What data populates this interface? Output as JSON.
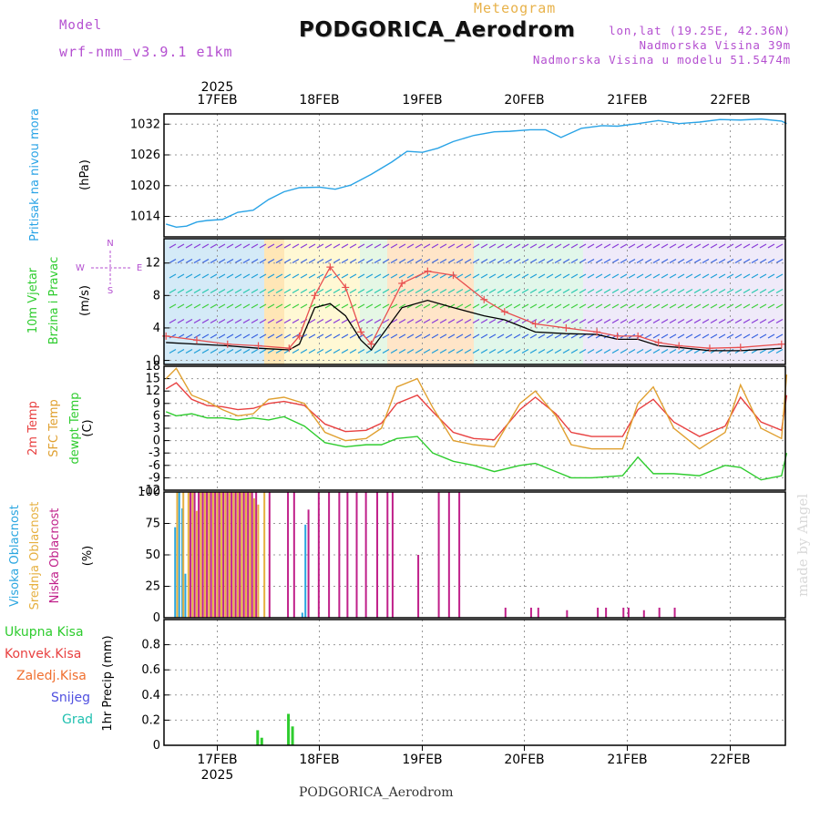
{
  "header": {
    "model_label": "Model",
    "model_name": "wrf-nmm_v3.9.1  e1km",
    "meteogram_label": "Meteogram",
    "station": "PODGORICA_Aerodrom",
    "lonlat": "lon,lat (19.25E, 42.36N)",
    "elevation": "Nadmorska Visina 39m",
    "model_elevation": "Nadmorska Visina u modelu 51.5474m"
  },
  "footer": {
    "station": "PODGORICA_Aerodrom",
    "credit": "made by Angel"
  },
  "time_axis": {
    "year": "2025",
    "days": [
      "17FEB",
      "18FEB",
      "19FEB",
      "20FEB",
      "21FEB",
      "22FEB"
    ]
  },
  "chart_data": [
    {
      "type": "line",
      "panel": "pressure",
      "ylabel": [
        "Pritisak na nivou mora",
        "(hPa)"
      ],
      "ylim": [
        1010,
        1034
      ],
      "yticks": [
        1014,
        1020,
        1026,
        1032
      ],
      "grid": true,
      "series": [
        {
          "color": "#29a3e6",
          "x": [
            0,
            0.1,
            0.2,
            0.3,
            0.4,
            0.55,
            0.7,
            0.85,
            1.0,
            1.15,
            1.3,
            1.5,
            1.65,
            1.8,
            2.0,
            2.2,
            2.35,
            2.5,
            2.65,
            2.8,
            3.0,
            3.2,
            3.35,
            3.55,
            3.7,
            3.85,
            4.05,
            4.25,
            4.4,
            4.6,
            4.8,
            5.0,
            5.2,
            5.4,
            5.6,
            5.8,
            6.0,
            6.05
          ],
          "y": [
            1012.5,
            1011.9,
            1012.1,
            1012.9,
            1013.2,
            1013.4,
            1014.8,
            1015.2,
            1017.3,
            1018.8,
            1019.6,
            1019.7,
            1019.3,
            1020.1,
            1022.2,
            1024.6,
            1026.7,
            1026.5,
            1027.3,
            1028.6,
            1029.8,
            1030.5,
            1030.6,
            1030.9,
            1030.9,
            1029.4,
            1031.2,
            1031.7,
            1031.6,
            1032.1,
            1032.7,
            1032.1,
            1032.4,
            1032.9,
            1032.8,
            1033.0,
            1032.6,
            1032.1
          ]
        }
      ]
    },
    {
      "type": "line",
      "panel": "wind",
      "ylabel": [
        "10m Vjetar",
        "Brzina i Pravac",
        "(m/s)"
      ],
      "direction_legend": [
        "N",
        "E",
        "S",
        "W"
      ],
      "ylim": [
        -0.5,
        15
      ],
      "yticks": [
        0,
        4,
        8,
        12
      ],
      "grid": true,
      "series": [
        {
          "name": "speed",
          "color": "#000000",
          "x": [
            0,
            0.3,
            0.6,
            0.9,
            1.2,
            1.3,
            1.45,
            1.6,
            1.75,
            1.9,
            2.0,
            2.3,
            2.55,
            2.8,
            3.1,
            3.3,
            3.6,
            3.9,
            4.2,
            4.4,
            4.6,
            4.8,
            5.0,
            5.3,
            5.6,
            6.0
          ],
          "y": [
            2.2,
            2.0,
            1.8,
            1.5,
            1.3,
            2.0,
            6.5,
            7.0,
            5.5,
            2.5,
            1.3,
            6.5,
            7.4,
            6.5,
            5.5,
            5.0,
            3.5,
            3.3,
            3.2,
            2.6,
            2.6,
            1.8,
            1.6,
            1.2,
            1.2,
            1.5
          ]
        },
        {
          "name": "gust",
          "color": "#e85050",
          "x": [
            0,
            0.3,
            0.6,
            0.9,
            1.2,
            1.3,
            1.45,
            1.6,
            1.75,
            1.9,
            2.0,
            2.3,
            2.55,
            2.8,
            3.1,
            3.3,
            3.6,
            3.9,
            4.2,
            4.4,
            4.6,
            4.8,
            5.0,
            5.3,
            5.6,
            6.0
          ],
          "y": [
            3.0,
            2.5,
            2.0,
            1.8,
            1.5,
            3.0,
            8.0,
            11.5,
            9.0,
            3.5,
            2.0,
            9.5,
            11.0,
            10.5,
            7.5,
            6.0,
            4.5,
            4.0,
            3.5,
            3.0,
            3.0,
            2.2,
            1.8,
            1.5,
            1.6,
            2.0
          ]
        }
      ]
    },
    {
      "type": "line",
      "panel": "temperature",
      "ylabel": [
        "2m Temp",
        "SFC Temp",
        "dewpt Temp",
        "(C)"
      ],
      "ylim": [
        -12,
        18
      ],
      "yticks": [
        -12,
        -9,
        -6,
        -3,
        0,
        3,
        6,
        9,
        12,
        15,
        18
      ],
      "grid": true,
      "series": [
        {
          "name": "2m Temp",
          "color": "#e84040",
          "x": [
            0,
            0.1,
            0.25,
            0.4,
            0.55,
            0.7,
            0.85,
            1.0,
            1.15,
            1.35,
            1.55,
            1.75,
            1.95,
            2.1,
            2.25,
            2.45,
            2.6,
            2.8,
            3.0,
            3.2,
            3.45,
            3.6,
            3.8,
            3.95,
            4.15,
            4.45,
            4.6,
            4.75,
            4.95,
            5.2,
            5.45,
            5.6,
            5.8,
            6.0,
            6.05
          ],
          "y": [
            12.5,
            14.0,
            10.0,
            8.5,
            8.2,
            7.5,
            7.8,
            9.0,
            9.5,
            8.5,
            4.0,
            2.2,
            2.5,
            4.2,
            9.0,
            11.0,
            7.0,
            2.0,
            0.5,
            0.2,
            7.5,
            10.5,
            6.5,
            2.0,
            1.0,
            1.0,
            7.5,
            10.0,
            4.5,
            1.0,
            3.5,
            10.5,
            4.5,
            2.5,
            11.0
          ]
        },
        {
          "name": "SFC Temp",
          "color": "#e0a030",
          "x": [
            0,
            0.1,
            0.25,
            0.4,
            0.55,
            0.7,
            0.85,
            1.0,
            1.15,
            1.35,
            1.55,
            1.75,
            1.95,
            2.1,
            2.25,
            2.45,
            2.6,
            2.8,
            3.0,
            3.2,
            3.45,
            3.6,
            3.8,
            3.95,
            4.15,
            4.45,
            4.6,
            4.75,
            4.95,
            5.2,
            5.45,
            5.6,
            5.8,
            6.0,
            6.05
          ],
          "y": [
            15.0,
            17.5,
            11.0,
            9.5,
            7.5,
            6.0,
            6.5,
            10.0,
            10.5,
            9.0,
            2.0,
            0.0,
            0.5,
            3.0,
            13.0,
            15.0,
            8.0,
            0.0,
            -1.0,
            -1.5,
            9.0,
            12.0,
            6.0,
            -1.0,
            -2.0,
            -2.0,
            9.0,
            13.0,
            3.0,
            -2.0,
            2.0,
            13.5,
            3.0,
            0.5,
            16.0
          ]
        },
        {
          "name": "dewpt Temp",
          "color": "#2ecc2e",
          "x": [
            0,
            0.1,
            0.25,
            0.4,
            0.55,
            0.7,
            0.85,
            1.0,
            1.15,
            1.35,
            1.55,
            1.75,
            1.95,
            2.1,
            2.25,
            2.45,
            2.6,
            2.8,
            3.0,
            3.2,
            3.45,
            3.6,
            3.8,
            3.95,
            4.15,
            4.45,
            4.6,
            4.75,
            4.95,
            5.2,
            5.45,
            5.6,
            5.8,
            6.0,
            6.05
          ],
          "y": [
            7.0,
            6.0,
            6.5,
            5.5,
            5.5,
            5.0,
            5.5,
            5.0,
            5.8,
            3.5,
            -0.5,
            -1.5,
            -1.0,
            -1.0,
            0.5,
            1.0,
            -3.0,
            -5.0,
            -6.0,
            -7.5,
            -6.0,
            -5.5,
            -7.5,
            -9.0,
            -9.0,
            -8.5,
            -4.0,
            -8.0,
            -8.0,
            -8.5,
            -6.0,
            -6.5,
            -9.5,
            -8.5,
            -3.0
          ]
        }
      ]
    },
    {
      "type": "bar",
      "panel": "cloud cover",
      "ylabel": [
        "Visoka Oblacnost",
        "Srednja Oblacnost",
        "Niska Oblacnost",
        "(%)"
      ],
      "ylim": [
        0,
        100
      ],
      "yticks": [
        0,
        25,
        50,
        75,
        100
      ],
      "grid": true,
      "series": [
        {
          "name": "Visoka Oblacnost",
          "color": "#2aa6e0",
          "x": [
            0.08,
            0.12,
            0.15,
            0.18,
            1.32,
            1.35
          ],
          "values": [
            72,
            100,
            87,
            35,
            4,
            74
          ]
        },
        {
          "name": "Srednja Oblacnost",
          "color": "#e6b040",
          "x": [
            0.1,
            0.16,
            0.21,
            0.25,
            0.29,
            0.33,
            0.37,
            0.41,
            0.45,
            0.49,
            0.53,
            0.57,
            0.61,
            0.65,
            0.69,
            0.73,
            0.77,
            0.81,
            0.85,
            0.89,
            0.95
          ],
          "values": [
            100,
            100,
            100,
            100,
            85,
            100,
            100,
            100,
            100,
            100,
            100,
            100,
            100,
            100,
            100,
            100,
            100,
            100,
            95,
            90,
            100
          ]
        },
        {
          "name": "Niska Oblacnost",
          "color": "#c0208a",
          "x": [
            0.23,
            0.27,
            0.31,
            0.35,
            0.39,
            0.43,
            0.47,
            0.51,
            0.55,
            0.59,
            0.63,
            0.67,
            0.71,
            0.75,
            0.79,
            0.83,
            0.87,
            1.0,
            1.18,
            1.24,
            1.38,
            1.48,
            1.58,
            1.68,
            1.76,
            1.85,
            1.94,
            2.05,
            2.15,
            2.2,
            2.45,
            2.65,
            2.75,
            2.85,
            3.3,
            3.55,
            3.62,
            3.9,
            4.2,
            4.28,
            4.45,
            4.5,
            4.65,
            4.8,
            4.95
          ],
          "values": [
            100,
            100,
            100,
            100,
            100,
            100,
            100,
            100,
            100,
            100,
            100,
            100,
            100,
            100,
            100,
            100,
            100,
            100,
            100,
            100,
            86,
            100,
            100,
            100,
            100,
            100,
            100,
            100,
            100,
            100,
            50,
            100,
            100,
            100,
            8,
            8,
            8,
            6,
            8,
            8,
            8,
            8,
            6,
            8,
            8
          ]
        }
      ]
    },
    {
      "type": "bar",
      "panel": "precipitation",
      "ylabel": [
        "1hr Precip (mm)"
      ],
      "legend": [
        "Ukupna Kisa",
        "Konvek.Kisa",
        "Zaledj.Kisa",
        "Snijeg",
        "Grad"
      ],
      "legend_colors": [
        "#2ecc2e",
        "#e84040",
        "#f07030",
        "#5050e0",
        "#20c0b0"
      ],
      "ylim": [
        0,
        1.0
      ],
      "yticks": [
        0,
        0.2,
        0.4,
        0.6,
        0.8
      ],
      "grid": true,
      "series": [
        {
          "name": "Ukupna Kisa",
          "color": "#2ecc2e",
          "x": [
            0.88,
            0.92,
            1.18,
            1.22
          ],
          "values": [
            0.12,
            0.06,
            0.25,
            0.15
          ]
        }
      ]
    }
  ]
}
